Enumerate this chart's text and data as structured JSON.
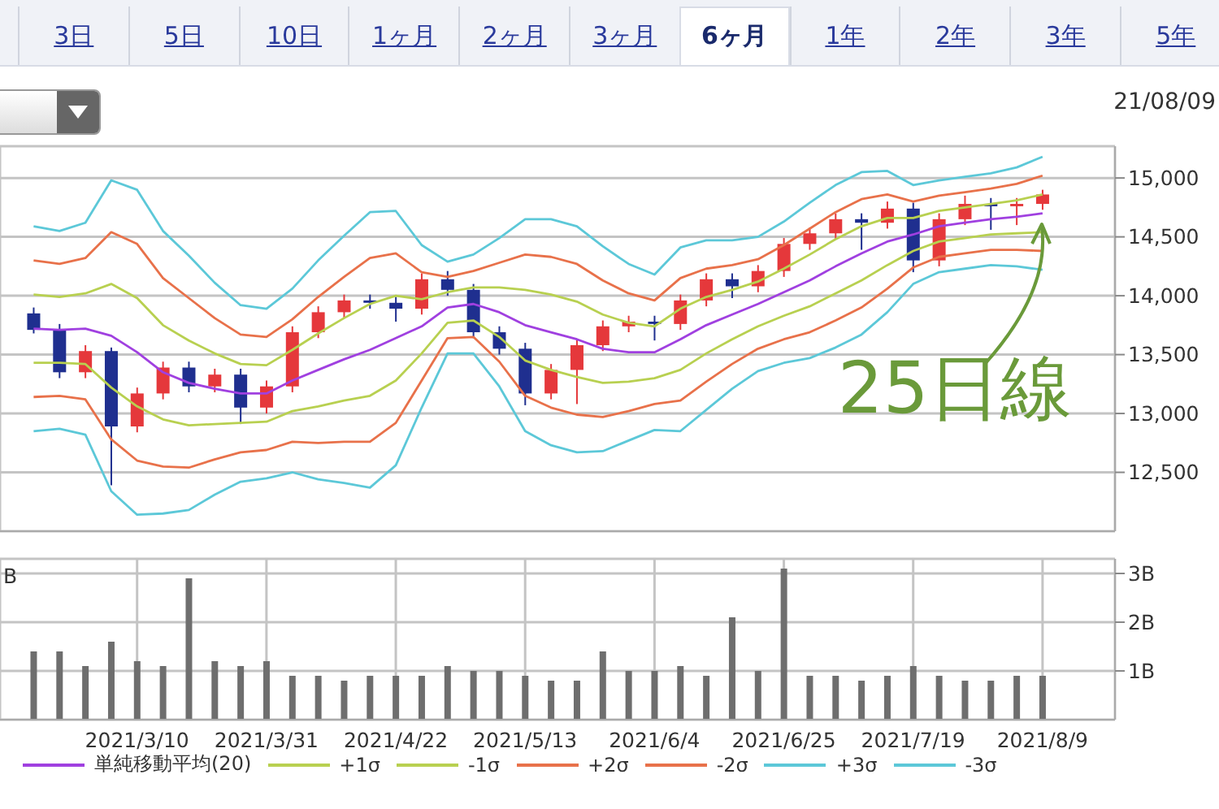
{
  "chart_data": [
    {
      "type": "candlestick",
      "annotations": [
        "3日",
        "5日",
        "10日",
        "1ヶ月",
        "2ヶ月",
        "3ヶ月",
        "6ヶ月",
        "1年",
        "2年",
        "3年",
        "5年",
        "21/08/09",
        {
          "text": "25日線",
          "x": "2021/8/9",
          "y": 14690
        }
      ],
      "categories": [
        null,
        null,
        null,
        null,
        "2021/3/10",
        null,
        null,
        null,
        null,
        "2021/3/31",
        null,
        null,
        null,
        null,
        "2021/4/22",
        null,
        null,
        null,
        null,
        "2021/5/13",
        null,
        null,
        null,
        null,
        "2021/6/4",
        null,
        null,
        null,
        null,
        "2021/6/25",
        null,
        null,
        null,
        null,
        "2021/7/19",
        null,
        null,
        null,
        null,
        "2021/8/9"
      ],
      "ohlc": [
        [
          13850,
          13900,
          13680,
          13710
        ],
        [
          13710,
          13760,
          13300,
          13350
        ],
        [
          13350,
          13580,
          13300,
          13530
        ],
        [
          13530,
          13560,
          12390,
          12890
        ],
        [
          12890,
          13220,
          12840,
          13170
        ],
        [
          13170,
          13440,
          13120,
          13390
        ],
        [
          13390,
          13440,
          13180,
          13230
        ],
        [
          13230,
          13380,
          13180,
          13330
        ],
        [
          13330,
          13380,
          12910,
          13050
        ],
        [
          13050,
          13280,
          13000,
          13230
        ],
        [
          13230,
          13740,
          13180,
          13690
        ],
        [
          13690,
          13910,
          13640,
          13860
        ],
        [
          13860,
          14010,
          13810,
          13960
        ],
        [
          13960,
          14010,
          13890,
          13940
        ],
        [
          13940,
          13990,
          13780,
          13890
        ],
        [
          13890,
          14190,
          13840,
          14140
        ],
        [
          14140,
          14210,
          14000,
          14050
        ],
        [
          14050,
          14100,
          13640,
          13690
        ],
        [
          13690,
          13740,
          13500,
          13550
        ],
        [
          13550,
          13600,
          13070,
          13170
        ],
        [
          13170,
          13420,
          13120,
          13370
        ],
        [
          13370,
          13630,
          13080,
          13580
        ],
        [
          13580,
          13790,
          13530,
          13740
        ],
        [
          13740,
          13830,
          13690,
          13780
        ],
        [
          13780,
          13830,
          13620,
          13760
        ],
        [
          13760,
          14010,
          13710,
          13960
        ],
        [
          13960,
          14190,
          13910,
          14140
        ],
        [
          14140,
          14190,
          13980,
          14080
        ],
        [
          14080,
          14260,
          14030,
          14210
        ],
        [
          14210,
          14490,
          14160,
          14440
        ],
        [
          14440,
          14580,
          14390,
          14530
        ],
        [
          14530,
          14700,
          14480,
          14650
        ],
        [
          14650,
          14700,
          14390,
          14620
        ],
        [
          14620,
          14800,
          14570,
          14740
        ],
        [
          14740,
          14790,
          14200,
          14300
        ],
        [
          14300,
          14700,
          14250,
          14650
        ],
        [
          14650,
          14850,
          14600,
          14780
        ],
        [
          14780,
          14830,
          14560,
          14760
        ],
        [
          14760,
          14830,
          14600,
          14780
        ],
        [
          14780,
          14900,
          14730,
          14860
        ]
      ],
      "colors": [
        "#1f2f8f",
        "#1f2f8f",
        "#e5383b",
        "#1f2f8f",
        "#e5383b",
        "#e5383b",
        "#1f2f8f",
        "#e5383b",
        "#1f2f8f",
        "#e5383b",
        "#e5383b",
        "#e5383b",
        "#e5383b",
        "#1f2f8f",
        "#1f2f8f",
        "#e5383b",
        "#1f2f8f",
        "#1f2f8f",
        "#1f2f8f",
        "#1f2f8f",
        "#e5383b",
        "#e5383b",
        "#e5383b",
        "#e5383b",
        "#1f2f8f",
        "#e5383b",
        "#e5383b",
        "#1f2f8f",
        "#e5383b",
        "#e5383b",
        "#e5383b",
        "#e5383b",
        "#1f2f8f",
        "#e5383b",
        "#1f2f8f",
        "#e5383b",
        "#e5383b",
        "#1f2f8f",
        "#e5383b",
        "#e5383b"
      ],
      "series": [
        {
          "type": "line",
          "name": "単純移動平均(20)",
          "color": "#a040e0",
          "values": [
            13720,
            13710,
            13720,
            13660,
            13520,
            13350,
            13260,
            13210,
            13170,
            13170,
            13280,
            13370,
            13460,
            13540,
            13640,
            13740,
            13900,
            13930,
            13860,
            13750,
            13690,
            13630,
            13550,
            13520,
            13520,
            13630,
            13750,
            13840,
            13930,
            14030,
            14130,
            14250,
            14360,
            14460,
            14520,
            14590,
            14620,
            14650,
            14670,
            14700
          ]
        },
        {
          "type": "line",
          "name": "+1σ",
          "color": "#b8d050",
          "values": [
            14010,
            13990,
            14020,
            14100,
            13980,
            13750,
            13620,
            13510,
            13420,
            13410,
            13540,
            13680,
            13810,
            13930,
            14000,
            13970,
            14030,
            14070,
            14070,
            14050,
            14010,
            13950,
            13840,
            13770,
            13740,
            13890,
            13990,
            14050,
            14120,
            14230,
            14350,
            14480,
            14590,
            14660,
            14660,
            14720,
            14750,
            14780,
            14810,
            14860
          ]
        },
        {
          "type": "line",
          "name": "-1σ",
          "color": "#b8d050",
          "values": [
            13430,
            13430,
            13420,
            13220,
            13060,
            12950,
            12900,
            12910,
            12920,
            12930,
            13020,
            13060,
            13110,
            13150,
            13280,
            13510,
            13770,
            13790,
            13650,
            13450,
            13370,
            13310,
            13260,
            13270,
            13300,
            13370,
            13510,
            13630,
            13740,
            13830,
            13910,
            14020,
            14130,
            14260,
            14380,
            14460,
            14490,
            14520,
            14530,
            14540
          ]
        },
        {
          "type": "line",
          "name": "+2σ",
          "color": "#e8714a",
          "values": [
            14300,
            14270,
            14320,
            14540,
            14440,
            14150,
            13980,
            13810,
            13670,
            13650,
            13800,
            13990,
            14160,
            14320,
            14360,
            14200,
            14160,
            14210,
            14280,
            14350,
            14330,
            14270,
            14130,
            14020,
            13960,
            14150,
            14230,
            14260,
            14310,
            14430,
            14570,
            14710,
            14820,
            14860,
            14800,
            14850,
            14880,
            14910,
            14950,
            15020
          ]
        },
        {
          "type": "line",
          "name": "-2σ",
          "color": "#e8714a",
          "values": [
            13140,
            13150,
            13120,
            12780,
            12600,
            12550,
            12540,
            12610,
            12670,
            12690,
            12760,
            12750,
            12760,
            12760,
            12920,
            13280,
            13640,
            13650,
            13440,
            13150,
            13050,
            12990,
            12970,
            13020,
            13080,
            13110,
            13270,
            13420,
            13550,
            13630,
            13690,
            13790,
            13900,
            14060,
            14240,
            14330,
            14360,
            14390,
            14390,
            14380
          ]
        },
        {
          "type": "line",
          "name": "+3σ",
          "color": "#5cc8d8",
          "values": [
            14590,
            14550,
            14620,
            14980,
            14900,
            14550,
            14340,
            14110,
            13920,
            13890,
            14060,
            14300,
            14510,
            14710,
            14720,
            14430,
            14290,
            14350,
            14490,
            14650,
            14650,
            14590,
            14420,
            14270,
            14180,
            14410,
            14470,
            14470,
            14500,
            14630,
            14790,
            14940,
            15050,
            15060,
            14940,
            14980,
            15010,
            15040,
            15090,
            15180
          ]
        },
        {
          "type": "line",
          "name": "-3σ",
          "color": "#5cc8d8",
          "values": [
            12850,
            12870,
            12820,
            12340,
            12140,
            12150,
            12180,
            12310,
            12420,
            12450,
            12500,
            12440,
            12410,
            12370,
            12560,
            13050,
            13510,
            13510,
            13230,
            12850,
            12730,
            12670,
            12680,
            12770,
            12860,
            12850,
            13030,
            13210,
            13360,
            13430,
            13470,
            13560,
            13670,
            13860,
            14100,
            14200,
            14230,
            14260,
            14250,
            14220
          ]
        }
      ],
      "ylim": [
        12000,
        15270
      ],
      "yticks": [
        {
          "value": 12500,
          "label": "12,500"
        },
        {
          "value": 13000,
          "label": "13,000"
        },
        {
          "value": 13500,
          "label": "13,500"
        },
        {
          "value": 14000,
          "label": "14,000"
        },
        {
          "value": 14500,
          "label": "14,500"
        },
        {
          "value": 15000,
          "label": "15,000"
        }
      ],
      "grid": true,
      "legend": "bottom",
      "tick_labels": "y"
    },
    {
      "type": "bar",
      "annotations": [
        "B"
      ],
      "categories": [
        null,
        null,
        null,
        null,
        "2021/3/10",
        null,
        null,
        null,
        null,
        "2021/3/31",
        null,
        null,
        null,
        null,
        "2021/4/22",
        null,
        null,
        null,
        null,
        "2021/5/13",
        null,
        null,
        null,
        null,
        "2021/6/4",
        null,
        null,
        null,
        null,
        "2021/6/25",
        null,
        null,
        null,
        null,
        "2021/7/19",
        null,
        null,
        null,
        null,
        "2021/8/9"
      ],
      "values": [
        1.4,
        1.4,
        1.1,
        1.6,
        1.2,
        1.1,
        2.9,
        1.2,
        1.1,
        1.2,
        0.9,
        0.9,
        0.8,
        0.9,
        0.9,
        0.9,
        1.1,
        1.0,
        1.0,
        0.9,
        0.8,
        0.8,
        1.4,
        1.0,
        1.0,
        1.1,
        0.9,
        2.1,
        1.0,
        3.1,
        0.9,
        0.9,
        0.8,
        0.9,
        1.1,
        0.9,
        0.8,
        0.8,
        0.9,
        0.9
      ],
      "color": "#6e6e6e",
      "ylim": [
        0,
        3.3
      ],
      "yticks": [
        {
          "value": 1,
          "label": "1B"
        },
        {
          "value": 2,
          "label": "2B"
        },
        {
          "value": 3,
          "label": "3B"
        }
      ],
      "grid": true
    }
  ]
}
